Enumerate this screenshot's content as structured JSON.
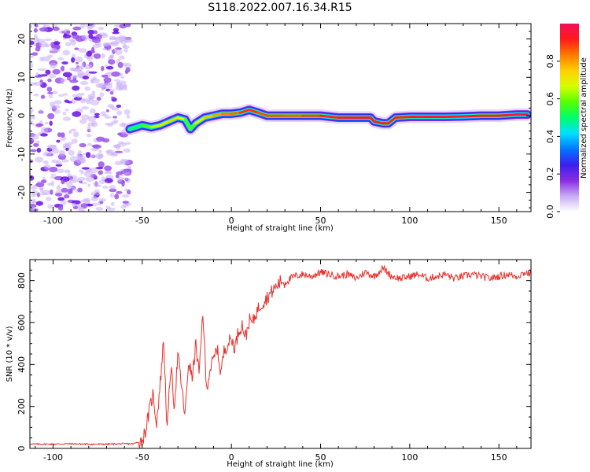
{
  "figure": {
    "title": "S118.2022.007.16.34.R15"
  },
  "colors": {
    "snr_line": "#e8302a",
    "noise_purple": "#7a22e6",
    "frame": "#000000"
  },
  "chart_data": [
    {
      "type": "heatmap",
      "xlabel": "Height of straight line (km)",
      "ylabel": "Frequency (Hz)",
      "xlim": [
        -113,
        168
      ],
      "ylim": [
        -25,
        24
      ],
      "xticks": [
        -100,
        -50,
        0,
        50,
        100,
        150
      ],
      "yticks": [
        -20,
        -10,
        0,
        10,
        20
      ],
      "colorbar": {
        "label": "Normalized spectral amplitude",
        "range": [
          0,
          1
        ],
        "ticks": [
          0.0,
          0.2,
          0.4,
          0.6,
          0.8
        ],
        "colormap": [
          "#ffffff",
          "#c7a9f5",
          "#8a2be2",
          "#3a20f0",
          "#0078ff",
          "#00e0ff",
          "#00ff6a",
          "#55ff00",
          "#d6ff00",
          "#ffd000",
          "#ff7a00",
          "#ff1a1a",
          "#f0105a"
        ]
      },
      "noise_region_x": [
        -113,
        -57
      ],
      "ridge": {
        "x": [
          -57,
          -50,
          -45,
          -40,
          -35,
          -30,
          -26,
          -23,
          -20,
          -15,
          -10,
          -5,
          0,
          5,
          10,
          15,
          20,
          30,
          40,
          50,
          60,
          70,
          78,
          80,
          85,
          88,
          92,
          100,
          110,
          120,
          130,
          140,
          150,
          160,
          166
        ],
        "y": [
          -3.5,
          -2.5,
          -3.0,
          -2.5,
          -1.5,
          -0.5,
          -1.0,
          -3.5,
          -2.0,
          -0.5,
          0.0,
          0.5,
          0.5,
          0.8,
          1.5,
          0.8,
          0.0,
          0.0,
          0.0,
          0.0,
          -0.5,
          -0.5,
          -0.5,
          -1.5,
          -2.0,
          -2.0,
          -0.5,
          -0.3,
          -0.3,
          -0.3,
          -0.2,
          0.0,
          0.0,
          0.3,
          0.3
        ],
        "amplitude": [
          0.45,
          0.55,
          0.6,
          0.7,
          0.75,
          0.75,
          0.6,
          0.5,
          0.65,
          0.75,
          0.78,
          0.82,
          0.85,
          0.85,
          0.95,
          0.85,
          0.9,
          0.85,
          0.88,
          0.9,
          0.92,
          0.95,
          0.95,
          0.92,
          0.95,
          0.92,
          0.9,
          0.92,
          0.92,
          0.93,
          0.93,
          0.94,
          0.95,
          0.96,
          0.96
        ]
      }
    },
    {
      "type": "line",
      "xlabel": "Height of straight line (km)",
      "ylabel": "SNR (10 * v/v)",
      "xlim": [
        -113,
        168
      ],
      "ylim": [
        0,
        900
      ],
      "xticks": [
        -100,
        -50,
        0,
        50,
        100,
        150
      ],
      "yticks": [
        0,
        200,
        400,
        600,
        800
      ],
      "series": [
        {
          "x": [
            -113,
            -100,
            -90,
            -80,
            -70,
            -60,
            -55,
            -52,
            -50,
            -48,
            -46,
            -44,
            -42,
            -40,
            -38,
            -36,
            -34,
            -32,
            -30,
            -28,
            -26,
            -24,
            -22,
            -20,
            -18,
            -16,
            -14,
            -12,
            -10,
            -8,
            -6,
            -4,
            -2,
            0,
            2,
            4,
            6,
            8,
            10,
            12,
            14,
            16,
            18,
            20,
            22,
            24,
            26,
            28,
            30,
            35,
            40,
            45,
            50,
            55,
            60,
            65,
            70,
            75,
            80,
            85,
            90,
            95,
            100,
            105,
            110,
            115,
            120,
            125,
            130,
            135,
            140,
            145,
            150,
            155,
            160,
            165,
            168
          ],
          "values": [
            20,
            20,
            22,
            20,
            20,
            22,
            22,
            30,
            40,
            90,
            180,
            260,
            120,
            300,
            520,
            80,
            400,
            200,
            450,
            300,
            150,
            420,
            330,
            500,
            350,
            660,
            280,
            380,
            420,
            480,
            360,
            470,
            500,
            520,
            480,
            560,
            590,
            530,
            610,
            600,
            650,
            680,
            700,
            720,
            740,
            760,
            780,
            800,
            790,
            820,
            830,
            820,
            840,
            830,
            820,
            830,
            810,
            840,
            820,
            860,
            820,
            810,
            820,
            830,
            810,
            820,
            830,
            810,
            820,
            830,
            820,
            810,
            820,
            830,
            820,
            840,
            830
          ]
        }
      ]
    }
  ]
}
